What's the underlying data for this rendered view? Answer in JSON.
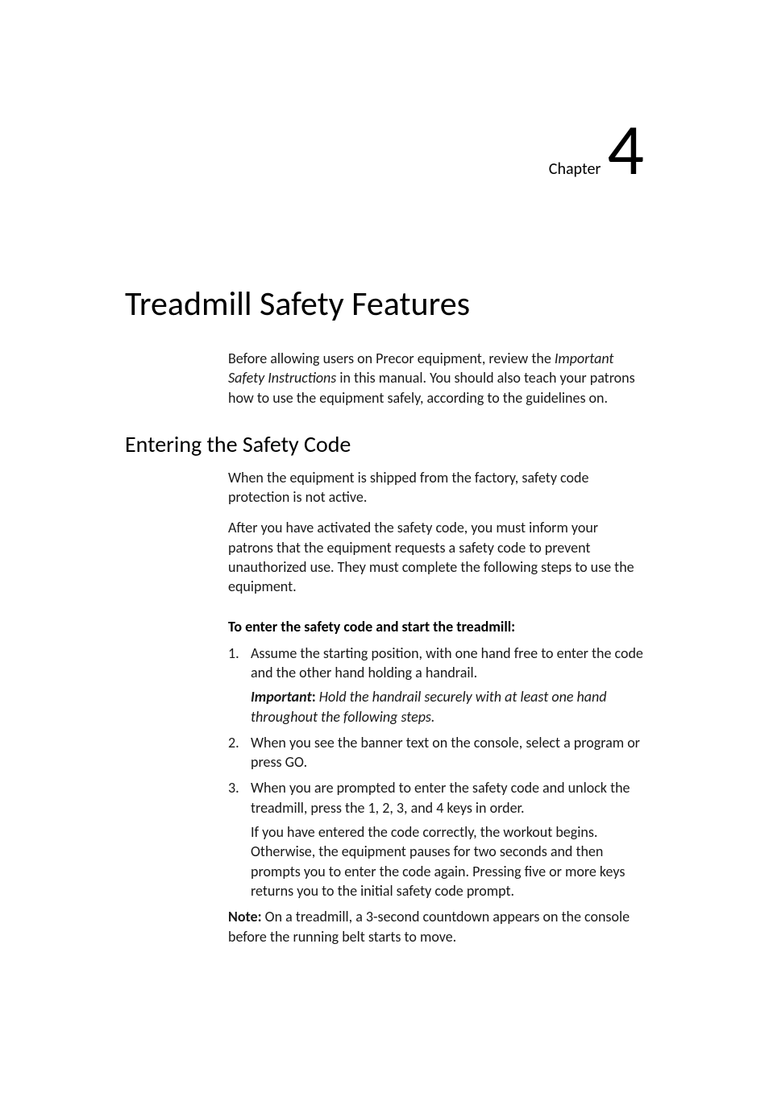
{
  "chapter": {
    "label": "Chapter",
    "number": "4"
  },
  "main_title": "Treadmill Safety Features",
  "intro_para": {
    "pre": "Before allowing users on Precor equipment, review the ",
    "italic": "Important Safety Instructions",
    "post": " in this manual. You should also teach your patrons how to use the equipment safely, according to the guidelines on."
  },
  "section_title": "Entering the Safety Code",
  "para1": "When the equipment is shipped from the factory, safety code protection is not active.",
  "para2": "After you have activated the safety code, you must inform your patrons that the equipment requests a safety code to prevent unauthorized use. They must complete the following steps to use the equipment.",
  "instruction_heading": "To enter the safety code and start the treadmill:",
  "steps": [
    {
      "num": "1.",
      "text": "Assume the starting position, with one hand free to enter the code and the other hand holding a handrail.",
      "important_label": "Important",
      "important_colon": ": ",
      "important_text": "Hold the handrail securely with at least one hand throughout the following steps."
    },
    {
      "num": "2.",
      "text": "When you see the banner text on the console, select a program or press GO."
    },
    {
      "num": "3.",
      "text": "When you are prompted to enter the safety code and unlock the treadmill, press the 1, 2, 3, and 4 keys in order.",
      "sub": "If you have entered the code correctly, the workout begins. Otherwise, the equipment pauses for two seconds and then prompts you to enter the code again. Pressing five or more keys returns you to the initial safety code prompt."
    }
  ],
  "note": {
    "label": "Note:",
    "text": " On a treadmill, a 3-second countdown appears on the console before the running belt starts to move."
  },
  "colors": {
    "background": "#ffffff",
    "text": "#000000"
  },
  "typography": {
    "chapter_label_size": 20,
    "chapter_number_size": 90,
    "main_title_size": 42,
    "section_title_size": 28,
    "body_size": 18
  }
}
